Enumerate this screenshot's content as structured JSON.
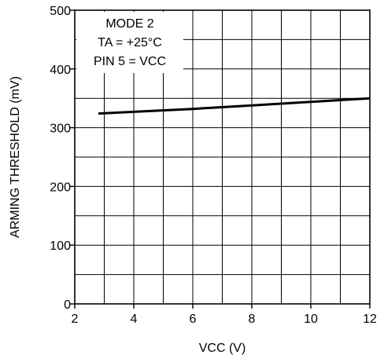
{
  "chart_data": {
    "type": "line",
    "xlabel": "VCC (V)",
    "ylabel": "ARMING THRESHOLD (mV)",
    "xlim": [
      2,
      12
    ],
    "ylim": [
      0,
      500
    ],
    "x_ticks": [
      2,
      4,
      6,
      8,
      10,
      12
    ],
    "y_ticks": [
      0,
      100,
      200,
      300,
      400,
      500
    ],
    "x_tick_labels": [
      "2",
      "4",
      "6",
      "8",
      "10",
      "12"
    ],
    "y_tick_labels": [
      "0",
      "100",
      "200",
      "300",
      "400",
      "500"
    ],
    "grid": true,
    "legend": "none",
    "annotation": {
      "line1": "MODE 2",
      "line2": "TA = +25°C",
      "line3": "PIN 5 = VCC"
    },
    "series": [
      {
        "x": [
          2.8,
          4,
          6,
          8,
          10,
          12
        ],
        "values": [
          324,
          327,
          332,
          338,
          344,
          350
        ]
      }
    ],
    "colors": {
      "line": "#000000",
      "grid": "#000000",
      "background": "#ffffff"
    }
  }
}
